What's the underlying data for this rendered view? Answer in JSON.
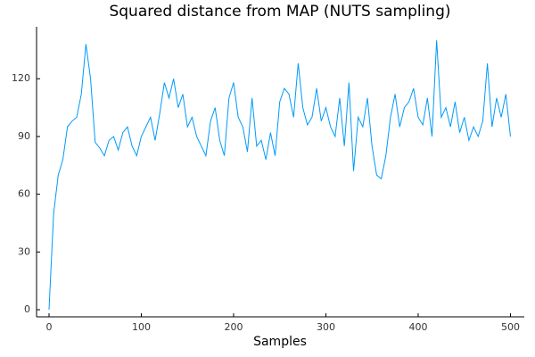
{
  "chart_data": {
    "type": "line",
    "title": "Squared distance from MAP (NUTS sampling)",
    "x_label": "Samples",
    "x": [
      0,
      5,
      10,
      15,
      20,
      25,
      30,
      35,
      40,
      45,
      50,
      55,
      60,
      65,
      70,
      75,
      80,
      85,
      90,
      95,
      100,
      105,
      110,
      115,
      120,
      125,
      130,
      135,
      140,
      145,
      150,
      155,
      160,
      165,
      170,
      175,
      180,
      185,
      190,
      195,
      200,
      205,
      210,
      215,
      220,
      225,
      230,
      235,
      240,
      245,
      250,
      255,
      260,
      265,
      270,
      275,
      280,
      285,
      290,
      295,
      300,
      305,
      310,
      315,
      320,
      325,
      330,
      335,
      340,
      345,
      350,
      355,
      360,
      365,
      370,
      375,
      380,
      385,
      390,
      395,
      400,
      405,
      410,
      415,
      420,
      425,
      430,
      435,
      440,
      445,
      450,
      455,
      460,
      465,
      470,
      475,
      480,
      485,
      490,
      495,
      500
    ],
    "values": [
      0,
      50,
      70,
      78,
      95,
      98,
      100,
      112,
      138,
      120,
      87,
      84,
      80,
      88,
      90,
      83,
      92,
      95,
      85,
      80,
      90,
      95,
      100,
      88,
      102,
      118,
      110,
      120,
      105,
      112,
      95,
      100,
      90,
      85,
      80,
      98,
      105,
      88,
      80,
      110,
      118,
      100,
      95,
      82,
      110,
      85,
      88,
      78,
      92,
      80,
      108,
      115,
      112,
      100,
      128,
      105,
      96,
      100,
      115,
      98,
      105,
      95,
      90,
      110,
      85,
      118,
      72,
      100,
      95,
      110,
      85,
      70,
      68,
      80,
      100,
      112,
      95,
      105,
      108,
      115,
      100,
      96,
      110,
      90,
      140,
      100,
      105,
      95,
      108,
      92,
      100,
      88,
      95,
      90,
      98,
      128,
      95,
      110,
      100,
      112,
      90
    ],
    "color": "#009af9",
    "xlim": [
      -13.5,
      515
    ],
    "ylim": [
      -3.7,
      147
    ],
    "xticks": [
      0,
      100,
      200,
      300,
      400,
      500
    ],
    "yticks": [
      0,
      30,
      60,
      90,
      120
    ],
    "grid": false
  }
}
